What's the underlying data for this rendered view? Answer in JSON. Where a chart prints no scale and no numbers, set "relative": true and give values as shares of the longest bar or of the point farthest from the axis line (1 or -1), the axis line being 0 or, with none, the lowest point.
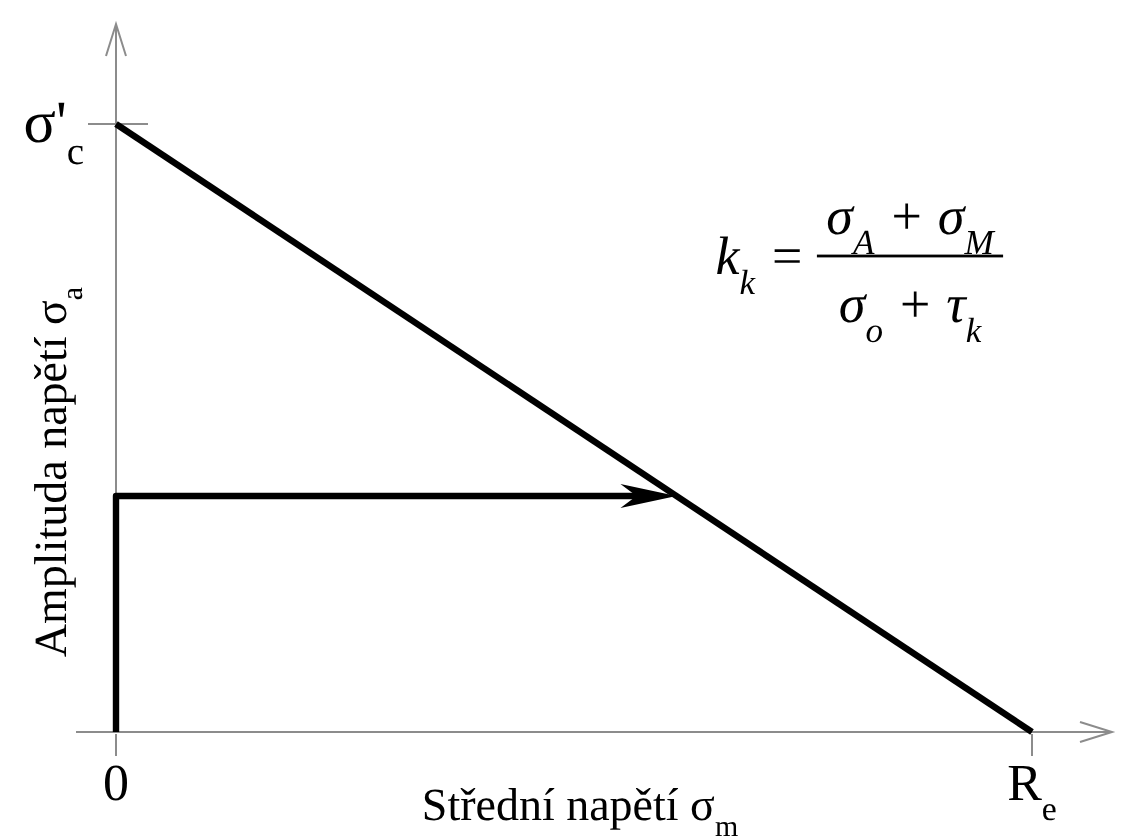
{
  "chart_data": {
    "type": "line",
    "relative": true,
    "xlabel": "Střední napětí σ$_{m}$",
    "ylabel": "Amplituda napětí σ$_{a}$",
    "categories": [
      "0",
      "R$_{e}$"
    ],
    "series": [
      {
        "color": "#000000",
        "values": [
          1,
          0
        ]
      }
    ],
    "annotations": [
      "k$_{k}$ =",
      "σ$_{A}$ + σ$_{M}$",
      "σ$_{o}$ + τ$_{k}$",
      {
        "text": "σ'$_{c}$",
        "x": "0",
        "y": 1
      }
    ]
  }
}
